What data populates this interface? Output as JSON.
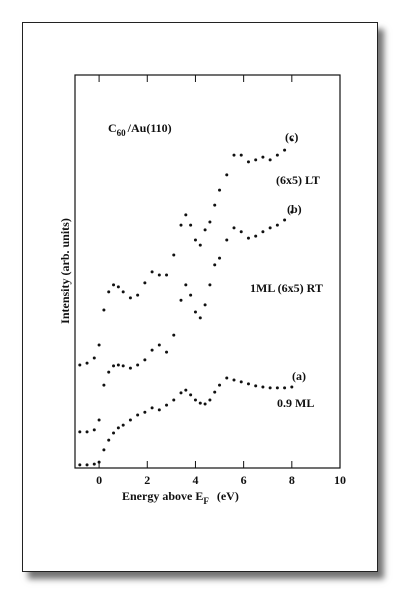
{
  "chart_data": {
    "type": "scatter",
    "title_base": "C",
    "title_subscript": "60",
    "title_suffix": "/Au(110)",
    "xlabel_base": "Energy above E",
    "xlabel_subscript": "F",
    "xlabel_suffix": "(eV)",
    "ylabel": "Intensity (arb. units)",
    "xlim": [
      -1,
      10
    ],
    "xticks": [
      0,
      2,
      4,
      6,
      8,
      10
    ],
    "ylim": [
      0,
      100
    ],
    "x": [
      -0.8,
      -0.5,
      -0.2,
      0,
      0.2,
      0.4,
      0.6,
      0.8,
      1.0,
      1.3,
      1.6,
      1.9,
      2.2,
      2.5,
      2.8,
      3.1,
      3.4,
      3.6,
      3.8,
      4.0,
      4.2,
      4.4,
      4.6,
      4.8,
      5.0,
      5.3,
      5.6,
      5.9,
      6.2,
      6.5,
      6.8,
      7.1,
      7.4,
      7.7,
      8.0
    ],
    "series": [
      {
        "tag": "(a)",
        "name": "0.9 ML",
        "color": "#111111",
        "values": [
          0.8,
          0.8,
          1.0,
          1.5,
          4.6,
          7.1,
          8.9,
          10.2,
          10.9,
          12.2,
          13.5,
          14.2,
          15.3,
          14.8,
          16.0,
          17.3,
          19.1,
          19.8,
          18.6,
          17.3,
          16.5,
          16.3,
          17.3,
          19.3,
          21.1,
          22.9,
          22.4,
          21.9,
          21.4,
          20.9,
          20.6,
          20.4,
          20.4,
          20.4,
          20.6
        ]
      },
      {
        "tag": "(b)",
        "name": "1ML (6x5) RT",
        "color": "#111111",
        "values": [
          9.2,
          9.2,
          9.7,
          12.2,
          21.1,
          24.4,
          26.0,
          26.2,
          26.0,
          25.4,
          26.2,
          27.5,
          30.0,
          31.3,
          29.5,
          33.8,
          42.7,
          46.6,
          44.0,
          39.7,
          38.2,
          41.5,
          46.6,
          51.7,
          53.4,
          58.0,
          61.1,
          60.1,
          58.5,
          59.0,
          60.1,
          61.1,
          61.8,
          63.1,
          65.1
        ]
      },
      {
        "tag": "(c)",
        "name": "(6x5) LT",
        "color": "#111111",
        "values": [
          26.2,
          26.7,
          28.0,
          31.3,
          40.2,
          44.8,
          46.6,
          46.1,
          44.8,
          43.3,
          44.0,
          47.1,
          49.9,
          49.1,
          49.1,
          54.2,
          61.8,
          64.4,
          61.8,
          58.0,
          56.7,
          60.6,
          62.6,
          66.9,
          70.7,
          74.6,
          79.6,
          79.6,
          77.9,
          78.4,
          79.1,
          78.4,
          79.6,
          80.9,
          83.5
        ]
      }
    ]
  }
}
